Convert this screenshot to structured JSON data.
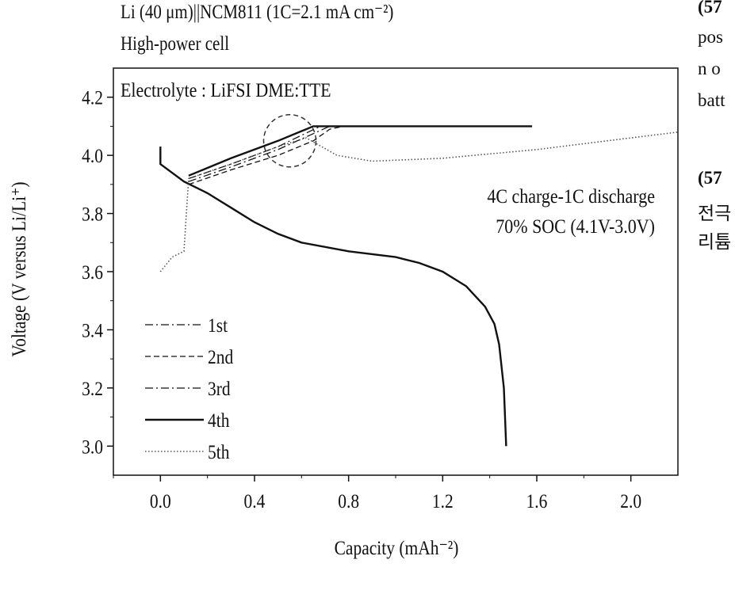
{
  "header": {
    "line1": "Li (40 μm)||NCM811 (1C=2.1 mA cm⁻²)",
    "line2": "High-power cell"
  },
  "side_text": [
    "(57",
    "pos",
    "n o",
    "batt",
    "(57",
    "전극",
    "리튬"
  ],
  "chart_data": {
    "type": "line",
    "title": "",
    "xlabel": "Capacity (mAh⁻²)",
    "ylabel": "Voltage (V versus Li/Li⁺)",
    "xlim": [
      -0.2,
      2.2
    ],
    "ylim": [
      2.9,
      4.3
    ],
    "xticks": [
      0.0,
      0.4,
      0.8,
      1.2,
      1.6,
      2.0
    ],
    "yticks": [
      3.0,
      3.2,
      3.4,
      3.6,
      3.8,
      4.0,
      4.2
    ],
    "xtick_labels": [
      "0.0",
      "0.4",
      "0.8",
      "1.2",
      "1.6",
      "2.0"
    ],
    "ytick_labels": [
      "3.0",
      "3.2",
      "3.4",
      "3.6",
      "3.8",
      "4.0",
      "4.2"
    ],
    "annotations": {
      "electrolyte": "Electrolyte : LiFSI DME:TTE",
      "protocol_line1": "4C charge-1C discharge",
      "protocol_line2": "70% SOC (4.1V-3.0V)"
    },
    "highlight_circle": {
      "x": 0.55,
      "y": 4.05
    },
    "legend_position": "bottom-left",
    "series": [
      {
        "name": "1st",
        "style": "dash-dot",
        "charge": [
          [
            0.12,
            3.91
          ],
          [
            0.3,
            3.96
          ],
          [
            0.5,
            4.02
          ],
          [
            0.72,
            4.1
          ],
          [
            0.8,
            4.1
          ]
        ]
      },
      {
        "name": "2nd",
        "style": "dashed",
        "charge": [
          [
            0.12,
            3.9
          ],
          [
            0.3,
            3.95
          ],
          [
            0.5,
            4.0
          ],
          [
            0.65,
            4.05
          ],
          [
            0.72,
            4.09
          ],
          [
            0.78,
            4.1
          ]
        ]
      },
      {
        "name": "3rd",
        "style": "dash-dot",
        "charge": [
          [
            0.12,
            3.92
          ],
          [
            0.3,
            3.97
          ],
          [
            0.5,
            4.03
          ],
          [
            0.68,
            4.1
          ],
          [
            0.76,
            4.1
          ]
        ]
      },
      {
        "name": "4th",
        "style": "solid",
        "charge": [
          [
            0.12,
            3.93
          ],
          [
            0.3,
            3.99
          ],
          [
            0.5,
            4.05
          ],
          [
            0.65,
            4.1
          ],
          [
            1.58,
            4.1
          ]
        ],
        "discharge": [
          [
            0.0,
            4.03
          ],
          [
            0.0,
            3.97
          ],
          [
            0.1,
            3.91
          ],
          [
            0.2,
            3.87
          ],
          [
            0.3,
            3.82
          ],
          [
            0.4,
            3.77
          ],
          [
            0.5,
            3.73
          ],
          [
            0.6,
            3.7
          ],
          [
            0.8,
            3.67
          ],
          [
            1.0,
            3.65
          ],
          [
            1.1,
            3.63
          ],
          [
            1.2,
            3.6
          ],
          [
            1.3,
            3.55
          ],
          [
            1.38,
            3.48
          ],
          [
            1.42,
            3.42
          ],
          [
            1.44,
            3.35
          ],
          [
            1.46,
            3.2
          ],
          [
            1.47,
            3.0
          ]
        ]
      },
      {
        "name": "5th",
        "style": "dotted",
        "charge": [
          [
            0.0,
            3.6
          ],
          [
            0.05,
            3.65
          ],
          [
            0.1,
            3.67
          ],
          [
            0.12,
            3.92
          ],
          [
            0.3,
            3.97
          ],
          [
            0.5,
            4.03
          ],
          [
            0.62,
            4.06
          ],
          [
            0.75,
            4.0
          ],
          [
            0.9,
            3.98
          ],
          [
            1.2,
            3.99
          ],
          [
            1.6,
            4.02
          ],
          [
            2.0,
            4.06
          ],
          [
            2.2,
            4.08
          ]
        ]
      }
    ]
  }
}
